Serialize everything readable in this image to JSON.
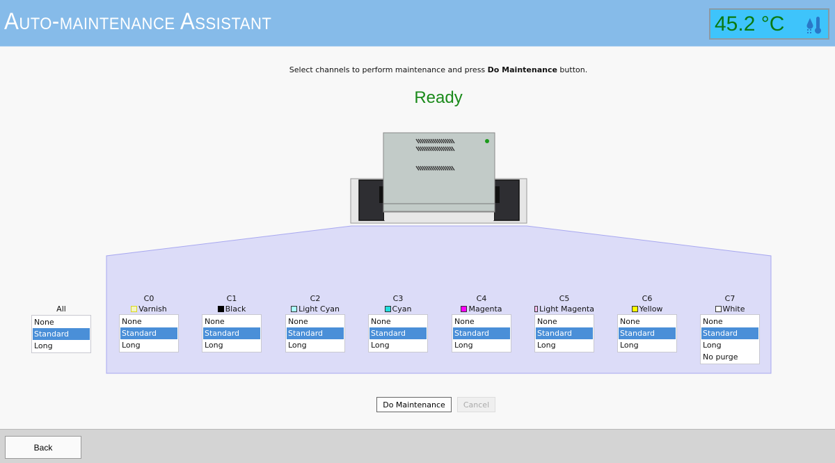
{
  "header": {
    "title": "Auto-maintenance Assistant",
    "temperature": "45.2 °C",
    "temperature_icon": "thermometer-humidity-icon"
  },
  "instructions": {
    "prefix": "Select channels to perform maintenance and press ",
    "bold": "Do Maintenance",
    "suffix": " button."
  },
  "status": {
    "text": "Ready",
    "color": "#1a8a1a"
  },
  "all": {
    "label": "All",
    "options": [
      "None",
      "Standard",
      "Long"
    ],
    "selected": "Standard"
  },
  "channels": [
    {
      "id": "C0",
      "name": "Varnish",
      "color": "#f4f4c0",
      "border": "#d8d820",
      "options": [
        "None",
        "Standard",
        "Long"
      ],
      "selected": "Standard"
    },
    {
      "id": "C1",
      "name": "Black",
      "color": "#000000",
      "border": "#000000",
      "options": [
        "None",
        "Standard",
        "Long"
      ],
      "selected": "Standard"
    },
    {
      "id": "C2",
      "name": "Light Cyan",
      "color": "#aaffff",
      "border": "#333333",
      "options": [
        "None",
        "Standard",
        "Long"
      ],
      "selected": "Standard"
    },
    {
      "id": "C3",
      "name": "Cyan",
      "color": "#22dddd",
      "border": "#333333",
      "options": [
        "None",
        "Standard",
        "Long"
      ],
      "selected": "Standard"
    },
    {
      "id": "C4",
      "name": "Magenta",
      "color": "#ff00ff",
      "border": "#333333",
      "options": [
        "None",
        "Standard",
        "Long"
      ],
      "selected": "Standard"
    },
    {
      "id": "C5",
      "name": "Light Magenta",
      "color": "#ffbbee",
      "border": "#333333",
      "options": [
        "None",
        "Standard",
        "Long"
      ],
      "selected": "Standard"
    },
    {
      "id": "C6",
      "name": "Yellow",
      "color": "#ffff00",
      "border": "#333333",
      "options": [
        "None",
        "Standard",
        "Long"
      ],
      "selected": "Standard"
    },
    {
      "id": "C7",
      "name": "White",
      "color": "#ffffff",
      "border": "#333333",
      "options": [
        "None",
        "Standard",
        "Long",
        "No purge"
      ],
      "selected": "Standard"
    }
  ],
  "buttons": {
    "do_maintenance": "Do Maintenance",
    "cancel": "Cancel",
    "back": "Back"
  },
  "printer": {
    "led_color": "#1a9a1a"
  }
}
